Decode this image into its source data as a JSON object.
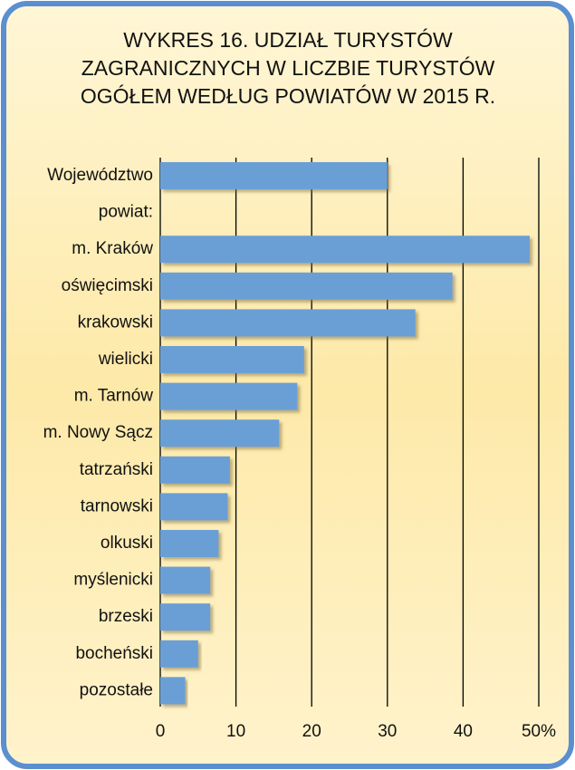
{
  "chart_data": {
    "type": "barh",
    "title": [
      "WYKRES 16.   UDZIAŁ TURYSTÓW",
      "ZAGRANICZNYCH W LICZBIE TURYSTÓW",
      "OGÓŁEM WEDŁUG POWIATÓW W 2015 R."
    ],
    "categories": [
      "Województwo",
      "powiat:",
      "m. Kraków",
      "oświęcimski",
      "krakowski",
      "wielicki",
      "m. Tarnów",
      "m. Nowy Sącz",
      "tatrzański",
      "tarnowski",
      "olkuski",
      "myślenicki",
      "brzeski",
      "bocheński",
      "pozostałe"
    ],
    "values": [
      30.0,
      null,
      48.8,
      38.6,
      33.7,
      19.0,
      18.1,
      15.7,
      9.2,
      8.9,
      7.7,
      6.6,
      6.6,
      5.0,
      3.3
    ],
    "color": "#6a9fd6",
    "xlim": [
      0,
      50
    ],
    "xticks": [
      0,
      10,
      20,
      30,
      40,
      {
        "value": 50,
        "label": "50%"
      }
    ],
    "grid": true
  }
}
